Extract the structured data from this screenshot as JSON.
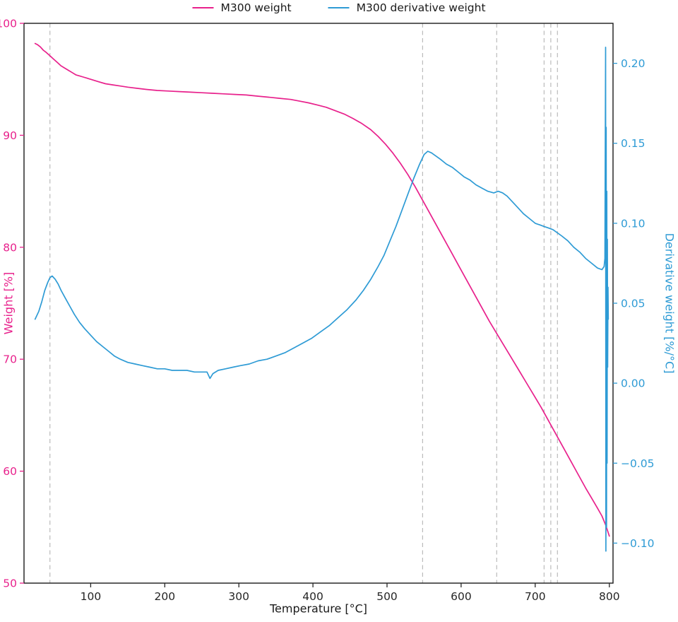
{
  "figure": {
    "legend": [
      {
        "label": "M300 weight",
        "color": "#e8218c"
      },
      {
        "label": "M300 derivative weight",
        "color": "#2e9bd5"
      }
    ],
    "xlabel": "Temperature [°C]",
    "ylabel_left": "Weight [%]",
    "ylabel_right": "Derivative weight [%/°C]"
  },
  "chart_data": {
    "type": "line",
    "title": "",
    "xlabel": "Temperature [°C]",
    "ylabel_left": "Weight [%]",
    "ylabel_right": "Derivative weight [%/°C]",
    "xlim": [
      10,
      805
    ],
    "ylim_left": [
      50,
      100
    ],
    "ylim_right": [
      -0.125,
      0.225
    ],
    "x_ticks": [
      100,
      200,
      300,
      400,
      500,
      600,
      700,
      800
    ],
    "y_ticks_left": [
      50,
      60,
      70,
      80,
      90,
      100
    ],
    "y_ticks_right": [
      -0.1,
      -0.05,
      0.0,
      0.05,
      0.1,
      0.15,
      0.2
    ],
    "y_tick_labels_right": [
      "−0.10",
      "−0.05",
      "0.00",
      "0.05",
      "0.10",
      "0.15",
      "0.20"
    ],
    "grid": false,
    "legend_position": "top-center",
    "vlines": {
      "x": [
        45,
        548,
        648,
        712,
        721,
        730
      ],
      "style": "dashed",
      "color": "#bbbbbb"
    },
    "axis_colors": {
      "left": "#e8218c",
      "right": "#2e9bd5",
      "bottom": "#262626"
    },
    "series": [
      {
        "name": "M300 weight",
        "axis": "left",
        "color": "#e8218c",
        "points": [
          [
            25,
            98.2
          ],
          [
            28,
            98.1
          ],
          [
            32,
            97.9
          ],
          [
            36,
            97.6
          ],
          [
            40,
            97.4
          ],
          [
            45,
            97.1
          ],
          [
            50,
            96.8
          ],
          [
            55,
            96.5
          ],
          [
            60,
            96.2
          ],
          [
            65,
            96.0
          ],
          [
            70,
            95.8
          ],
          [
            75,
            95.6
          ],
          [
            80,
            95.4
          ],
          [
            85,
            95.3
          ],
          [
            90,
            95.2
          ],
          [
            95,
            95.1
          ],
          [
            100,
            95.0
          ],
          [
            110,
            94.8
          ],
          [
            120,
            94.6
          ],
          [
            130,
            94.5
          ],
          [
            140,
            94.4
          ],
          [
            150,
            94.3
          ],
          [
            162,
            94.2
          ],
          [
            175,
            94.1
          ],
          [
            190,
            94.0
          ],
          [
            205,
            93.95
          ],
          [
            220,
            93.9
          ],
          [
            235,
            93.85
          ],
          [
            250,
            93.8
          ],
          [
            265,
            93.75
          ],
          [
            280,
            93.7
          ],
          [
            295,
            93.65
          ],
          [
            310,
            93.6
          ],
          [
            325,
            93.5
          ],
          [
            340,
            93.4
          ],
          [
            355,
            93.3
          ],
          [
            370,
            93.2
          ],
          [
            382,
            93.05
          ],
          [
            394,
            92.9
          ],
          [
            406,
            92.7
          ],
          [
            418,
            92.5
          ],
          [
            430,
            92.2
          ],
          [
            442,
            91.9
          ],
          [
            454,
            91.5
          ],
          [
            466,
            91.05
          ],
          [
            478,
            90.5
          ],
          [
            488,
            89.9
          ],
          [
            498,
            89.2
          ],
          [
            508,
            88.4
          ],
          [
            518,
            87.5
          ],
          [
            528,
            86.5
          ],
          [
            538,
            85.4
          ],
          [
            548,
            84.2
          ],
          [
            558,
            83.0
          ],
          [
            568,
            81.8
          ],
          [
            578,
            80.6
          ],
          [
            588,
            79.4
          ],
          [
            598,
            78.2
          ],
          [
            608,
            77.0
          ],
          [
            618,
            75.8
          ],
          [
            628,
            74.6
          ],
          [
            638,
            73.4
          ],
          [
            648,
            72.3
          ],
          [
            658,
            71.2
          ],
          [
            668,
            70.1
          ],
          [
            678,
            69.0
          ],
          [
            688,
            67.9
          ],
          [
            698,
            66.8
          ],
          [
            708,
            65.7
          ],
          [
            718,
            64.5
          ],
          [
            728,
            63.3
          ],
          [
            738,
            62.1
          ],
          [
            748,
            60.9
          ],
          [
            758,
            59.7
          ],
          [
            768,
            58.5
          ],
          [
            776,
            57.6
          ],
          [
            784,
            56.7
          ],
          [
            790,
            56.0
          ],
          [
            795,
            55.2
          ],
          [
            798,
            54.6
          ],
          [
            800,
            54.2
          ]
        ]
      },
      {
        "name": "M300 derivative weight",
        "axis": "right",
        "color": "#2e9bd5",
        "points": [
          [
            25,
            0.04
          ],
          [
            30,
            0.045
          ],
          [
            34,
            0.051
          ],
          [
            38,
            0.058
          ],
          [
            42,
            0.063
          ],
          [
            45,
            0.066
          ],
          [
            48,
            0.067
          ],
          [
            52,
            0.065
          ],
          [
            56,
            0.062
          ],
          [
            60,
            0.058
          ],
          [
            66,
            0.053
          ],
          [
            72,
            0.048
          ],
          [
            78,
            0.043
          ],
          [
            85,
            0.038
          ],
          [
            92,
            0.034
          ],
          [
            100,
            0.03
          ],
          [
            108,
            0.026
          ],
          [
            116,
            0.023
          ],
          [
            124,
            0.02
          ],
          [
            132,
            0.017
          ],
          [
            140,
            0.015
          ],
          [
            150,
            0.013
          ],
          [
            160,
            0.012
          ],
          [
            170,
            0.011
          ],
          [
            180,
            0.01
          ],
          [
            190,
            0.009
          ],
          [
            200,
            0.009
          ],
          [
            210,
            0.008
          ],
          [
            220,
            0.008
          ],
          [
            230,
            0.008
          ],
          [
            240,
            0.007
          ],
          [
            250,
            0.007
          ],
          [
            257,
            0.007
          ],
          [
            261,
            0.003
          ],
          [
            265,
            0.006
          ],
          [
            272,
            0.008
          ],
          [
            282,
            0.009
          ],
          [
            292,
            0.01
          ],
          [
            302,
            0.011
          ],
          [
            314,
            0.012
          ],
          [
            326,
            0.014
          ],
          [
            338,
            0.015
          ],
          [
            350,
            0.017
          ],
          [
            362,
            0.019
          ],
          [
            374,
            0.022
          ],
          [
            386,
            0.025
          ],
          [
            398,
            0.028
          ],
          [
            410,
            0.032
          ],
          [
            422,
            0.036
          ],
          [
            434,
            0.041
          ],
          [
            446,
            0.046
          ],
          [
            458,
            0.052
          ],
          [
            468,
            0.058
          ],
          [
            478,
            0.065
          ],
          [
            488,
            0.073
          ],
          [
            496,
            0.08
          ],
          [
            504,
            0.089
          ],
          [
            512,
            0.098
          ],
          [
            520,
            0.108
          ],
          [
            528,
            0.118
          ],
          [
            536,
            0.128
          ],
          [
            544,
            0.137
          ],
          [
            550,
            0.143
          ],
          [
            555,
            0.145
          ],
          [
            560,
            0.144
          ],
          [
            566,
            0.142
          ],
          [
            572,
            0.14
          ],
          [
            580,
            0.137
          ],
          [
            588,
            0.135
          ],
          [
            596,
            0.132
          ],
          [
            604,
            0.129
          ],
          [
            612,
            0.127
          ],
          [
            620,
            0.124
          ],
          [
            628,
            0.122
          ],
          [
            636,
            0.12
          ],
          [
            644,
            0.119
          ],
          [
            650,
            0.12
          ],
          [
            656,
            0.119
          ],
          [
            662,
            0.117
          ],
          [
            668,
            0.114
          ],
          [
            676,
            0.11
          ],
          [
            684,
            0.106
          ],
          [
            692,
            0.103
          ],
          [
            700,
            0.1
          ],
          [
            706,
            0.099
          ],
          [
            712,
            0.098
          ],
          [
            718,
            0.097
          ],
          [
            724,
            0.096
          ],
          [
            730,
            0.094
          ],
          [
            736,
            0.092
          ],
          [
            744,
            0.089
          ],
          [
            752,
            0.085
          ],
          [
            760,
            0.082
          ],
          [
            768,
            0.078
          ],
          [
            776,
            0.075
          ],
          [
            784,
            0.072
          ],
          [
            790,
            0.071
          ],
          [
            793,
            0.073
          ],
          [
            794,
            0.078
          ],
          [
            795,
            0.21
          ],
          [
            795.4,
            -0.105
          ],
          [
            795.8,
            0.16
          ],
          [
            796.2,
            -0.09
          ],
          [
            796.6,
            0.12
          ],
          [
            797,
            -0.05
          ],
          [
            797.4,
            0.09
          ],
          [
            797.8,
            0.01
          ],
          [
            798.2,
            0.06
          ],
          [
            798.6,
            0.04
          ]
        ]
      }
    ]
  }
}
